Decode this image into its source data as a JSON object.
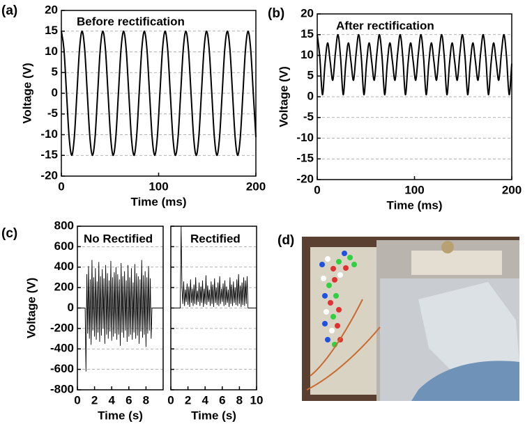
{
  "chart_data": [
    {
      "type": "line",
      "panel_label": "(a)",
      "title": "Before rectification",
      "xlabel": "Time (ms)",
      "ylabel": "Voltage (V)",
      "color": "#000000",
      "grid": true,
      "xlim": [
        0,
        200
      ],
      "ylim": [
        -20,
        20
      ],
      "xticks": [
        0,
        100,
        200
      ],
      "yticks": [
        -20,
        -15,
        -10,
        -5,
        0,
        5,
        10,
        15,
        20
      ],
      "x": [
        0,
        2.67,
        5.33,
        8,
        10.67,
        13.33,
        16,
        18.67,
        21.33,
        24,
        26.67,
        29.33,
        32,
        34.67,
        37.33,
        40,
        42.67,
        45.33,
        48,
        50.67,
        53.33,
        56,
        58.67,
        61.33,
        64,
        66.67,
        69.33,
        72,
        74.67,
        77.33,
        80,
        82.67,
        85.33,
        88,
        90.67,
        93.33,
        96,
        98.67,
        101.33,
        104,
        106.67,
        109.33,
        112,
        114.67,
        117.33,
        120,
        122.67,
        125.33,
        128,
        130.67,
        133.33,
        136,
        138.67,
        141.33,
        144,
        146.67,
        149.33,
        152,
        154.67,
        157.33,
        160,
        162.67,
        165.33,
        168,
        170.67,
        173.33,
        176,
        178.67,
        181.33,
        184,
        186.67,
        189.33,
        192,
        194.67,
        197.33,
        200
      ],
      "values": [
        15,
        10.6,
        0,
        -10.6,
        -15,
        -10.6,
        0,
        10.6,
        15,
        10.6,
        0,
        -10.6,
        -15,
        -10.6,
        0,
        10.6,
        15,
        10.6,
        0,
        -10.6,
        -15,
        -10.6,
        0,
        10.6,
        15,
        10.6,
        0,
        -10.6,
        -15,
        -10.6,
        0,
        10.6,
        15,
        10.6,
        0,
        -10.6,
        -15,
        -10.6,
        0,
        10.6,
        15,
        10.6,
        0,
        -10.6,
        -15,
        -10.6,
        0,
        10.6,
        15,
        10.6,
        0,
        -10.6,
        -15,
        -10.6,
        0,
        10.6,
        15,
        10.6,
        0,
        -10.6,
        -15,
        -10.6,
        0,
        10.6,
        15,
        10.6,
        0,
        -10.6,
        -15,
        -10.6,
        0,
        10.6,
        15,
        10.6,
        0,
        -10.6
      ]
    },
    {
      "type": "line",
      "panel_label": "(b)",
      "title": "After rectification",
      "xlabel": "Time (ms)",
      "ylabel": "Voltage (V)",
      "color": "#000000",
      "grid": true,
      "xlim": [
        0,
        200
      ],
      "ylim": [
        -20,
        20
      ],
      "xticks": [
        0,
        100,
        200
      ],
      "yticks": [
        -20,
        -15,
        -10,
        -5,
        0,
        5,
        10,
        15,
        20
      ],
      "x": [
        0,
        2.67,
        5.33,
        8,
        10.67,
        13.33,
        16,
        18.67,
        21.33,
        24,
        26.67,
        29.33,
        32,
        34.67,
        37.33,
        40,
        42.67,
        45.33,
        48,
        50.67,
        53.33,
        56,
        58.67,
        61.33,
        64,
        66.67,
        69.33,
        72,
        74.67,
        77.33,
        80,
        82.67,
        85.33,
        88,
        90.67,
        93.33,
        96,
        98.67,
        101.33,
        104,
        106.67,
        109.33,
        112,
        114.67,
        117.33,
        120,
        122.67,
        125.33,
        128,
        130.67,
        133.33,
        136,
        138.67,
        141.33,
        144,
        146.67,
        149.33,
        152,
        154.67,
        157.33,
        160,
        162.67,
        165.33,
        168,
        170.67,
        173.33,
        176,
        178.67,
        181.33,
        184,
        186.67,
        189.33,
        192,
        194.67,
        197.33,
        200
      ],
      "values": [
        15,
        9.5,
        0.5,
        8,
        13,
        8.5,
        4,
        10.5,
        15,
        9.5,
        0.5,
        8,
        13,
        8.5,
        4,
        10.5,
        15,
        9.5,
        0.5,
        8,
        13,
        8.5,
        4,
        10.5,
        15,
        9.5,
        0.5,
        8,
        13,
        8.5,
        4,
        10.5,
        15,
        9.5,
        0.5,
        8,
        13,
        8.5,
        4,
        10.5,
        15,
        9.5,
        0.5,
        8,
        13,
        8.5,
        4,
        10.5,
        15,
        9.5,
        0.5,
        8,
        13,
        8.5,
        4,
        10.5,
        15,
        9.5,
        0.5,
        8,
        13,
        8.5,
        4,
        10.5,
        15,
        9.5,
        0.5,
        8,
        13,
        8.5,
        4,
        10.5,
        15,
        9.5,
        0.5,
        8
      ]
    },
    {
      "type": "line",
      "panel_label": "(c)",
      "title": "No Rectified",
      "xlabel": "Time (s)",
      "ylabel": "Voltage (V)",
      "color": "#000000",
      "grid": true,
      "xlim": [
        0,
        10
      ],
      "ylim": [
        -800,
        800
      ],
      "xticks": [
        0,
        2,
        4,
        6,
        8
      ],
      "yticks": [
        -800,
        -600,
        -400,
        -200,
        0,
        200,
        400,
        600,
        800
      ],
      "x": [
        0,
        0.1,
        0.2,
        0.3,
        0.4,
        0.5,
        0.6,
        0.7,
        0.8,
        0.9,
        1,
        1.1,
        1.2,
        1.3,
        1.4,
        1.5,
        1.6,
        1.7,
        1.8,
        1.9,
        2,
        2.1,
        2.2,
        2.3,
        2.4,
        2.5,
        2.6,
        2.7,
        2.8,
        2.9,
        3,
        3.1,
        3.2,
        3.3,
        3.4,
        3.5,
        3.6,
        3.7,
        3.8,
        3.9,
        4,
        4.1,
        4.2,
        4.3,
        4.4,
        4.5,
        4.6,
        4.7,
        4.8,
        4.9,
        5,
        5.1,
        5.2,
        5.3,
        5.4,
        5.5,
        5.6,
        5.7,
        5.8,
        5.9,
        6,
        6.1,
        6.2,
        6.3,
        6.4,
        6.5,
        6.6,
        6.7,
        6.8,
        6.9,
        7,
        7.1,
        7.2,
        7.3,
        7.4,
        7.5,
        7.6,
        7.7,
        7.8,
        7.9,
        8,
        8.1,
        8.2,
        8.3,
        8.4,
        8.5,
        8.6,
        8.7,
        8.8,
        8.9,
        9,
        9.1,
        9.2,
        9.3,
        9.4,
        9.5,
        9.6,
        9.7,
        9.8,
        9.9,
        10
      ],
      "values": [
        0,
        0,
        0,
        0,
        0,
        0,
        0,
        0,
        0,
        0,
        -620,
        330,
        -250,
        410,
        -300,
        280,
        -360,
        470,
        -220,
        300,
        -280,
        390,
        -310,
        260,
        -240,
        450,
        -330,
        310,
        -270,
        380,
        -200,
        290,
        -350,
        420,
        -260,
        340,
        -300,
        270,
        -230,
        460,
        -320,
        300,
        -280,
        350,
        -250,
        400,
        -310,
        330,
        -260,
        280,
        -370,
        440,
        -240,
        310,
        -290,
        360,
        -220,
        270,
        -330,
        420,
        -280,
        300,
        -260,
        390,
        -310,
        250,
        -240,
        430,
        -300,
        340,
        -270,
        310,
        -350,
        280,
        -230,
        470,
        -290,
        320,
        -260,
        360,
        -380,
        300,
        -250,
        410,
        -220,
        290,
        -300,
        0,
        0,
        0,
        0,
        0,
        0,
        0,
        0,
        0,
        0,
        0,
        0,
        0,
        0
      ]
    },
    {
      "type": "line",
      "title": "Rectified",
      "xlabel": "Time (s)",
      "color": "#000000",
      "grid": true,
      "xlim": [
        0,
        10
      ],
      "ylim": [
        -800,
        800
      ],
      "xticks": [
        0,
        2,
        4,
        6,
        8,
        10
      ],
      "yticks": [
        -800,
        -600,
        -400,
        -200,
        0,
        200,
        400,
        600,
        800
      ],
      "x": [
        0,
        0.1,
        0.2,
        0.3,
        0.4,
        0.5,
        0.6,
        0.7,
        0.8,
        0.9,
        1,
        1.1,
        1.2,
        1.3,
        1.4,
        1.5,
        1.6,
        1.7,
        1.8,
        1.9,
        2,
        2.1,
        2.2,
        2.3,
        2.4,
        2.5,
        2.6,
        2.7,
        2.8,
        2.9,
        3,
        3.1,
        3.2,
        3.3,
        3.4,
        3.5,
        3.6,
        3.7,
        3.8,
        3.9,
        4,
        4.1,
        4.2,
        4.3,
        4.4,
        4.5,
        4.6,
        4.7,
        4.8,
        4.9,
        5,
        5.1,
        5.2,
        5.3,
        5.4,
        5.5,
        5.6,
        5.7,
        5.8,
        5.9,
        6,
        6.1,
        6.2,
        6.3,
        6.4,
        6.5,
        6.6,
        6.7,
        6.8,
        6.9,
        7,
        7.1,
        7.2,
        7.3,
        7.4,
        7.5,
        7.6,
        7.7,
        7.8,
        7.9,
        8,
        8.1,
        8.2,
        8.3,
        8.4,
        8.5,
        8.6,
        8.7,
        8.8,
        8.9,
        9,
        9.1,
        9.2,
        9.3,
        9.4,
        9.5,
        9.6,
        9.7,
        9.8,
        9.9,
        10
      ],
      "values": [
        0,
        0,
        0,
        0,
        0,
        0,
        0,
        0,
        0,
        0,
        0,
        0,
        800,
        200,
        40,
        260,
        20,
        180,
        60,
        240,
        30,
        210,
        10,
        280,
        50,
        190,
        20,
        230,
        40,
        300,
        30,
        170,
        60,
        250,
        20,
        210,
        50,
        270,
        10,
        190,
        40,
        320,
        30,
        220,
        60,
        180,
        20,
        260,
        40,
        230,
        10,
        290,
        50,
        200,
        30,
        250,
        20,
        310,
        40,
        190,
        60,
        240,
        20,
        270,
        30,
        210,
        50,
        180,
        10,
        300,
        40,
        230,
        20,
        260,
        50,
        200,
        30,
        280,
        20,
        330,
        40,
        220,
        10,
        250,
        30,
        300,
        20,
        270,
        40,
        310,
        0,
        0,
        0,
        0,
        0,
        0,
        0,
        0,
        0,
        0,
        0
      ]
    }
  ],
  "photo": {
    "label": "(d)"
  }
}
